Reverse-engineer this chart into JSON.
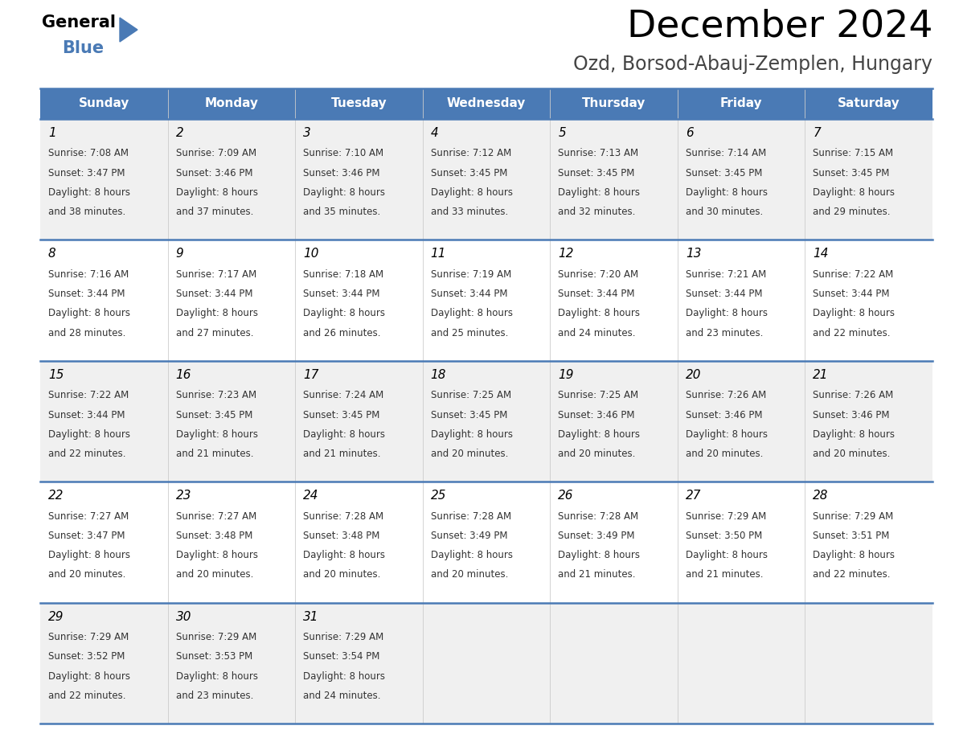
{
  "title": "December 2024",
  "subtitle": "Ozd, Borsod-Abauj-Zemplen, Hungary",
  "header_color": "#4a7ab5",
  "header_text_color": "#ffffff",
  "day_names": [
    "Sunday",
    "Monday",
    "Tuesday",
    "Wednesday",
    "Thursday",
    "Friday",
    "Saturday"
  ],
  "row_bg_colors": [
    "#f0f0f0",
    "#ffffff",
    "#f0f0f0",
    "#ffffff",
    "#f0f0f0"
  ],
  "border_color": "#4a7ab5",
  "text_color": "#333333",
  "days": [
    {
      "day": 1,
      "col": 0,
      "row": 0,
      "sunrise": "7:08 AM",
      "sunset": "3:47 PM",
      "daylight": "8 hours and 38 minutes."
    },
    {
      "day": 2,
      "col": 1,
      "row": 0,
      "sunrise": "7:09 AM",
      "sunset": "3:46 PM",
      "daylight": "8 hours and 37 minutes."
    },
    {
      "day": 3,
      "col": 2,
      "row": 0,
      "sunrise": "7:10 AM",
      "sunset": "3:46 PM",
      "daylight": "8 hours and 35 minutes."
    },
    {
      "day": 4,
      "col": 3,
      "row": 0,
      "sunrise": "7:12 AM",
      "sunset": "3:45 PM",
      "daylight": "8 hours and 33 minutes."
    },
    {
      "day": 5,
      "col": 4,
      "row": 0,
      "sunrise": "7:13 AM",
      "sunset": "3:45 PM",
      "daylight": "8 hours and 32 minutes."
    },
    {
      "day": 6,
      "col": 5,
      "row": 0,
      "sunrise": "7:14 AM",
      "sunset": "3:45 PM",
      "daylight": "8 hours and 30 minutes."
    },
    {
      "day": 7,
      "col": 6,
      "row": 0,
      "sunrise": "7:15 AM",
      "sunset": "3:45 PM",
      "daylight": "8 hours and 29 minutes."
    },
    {
      "day": 8,
      "col": 0,
      "row": 1,
      "sunrise": "7:16 AM",
      "sunset": "3:44 PM",
      "daylight": "8 hours and 28 minutes."
    },
    {
      "day": 9,
      "col": 1,
      "row": 1,
      "sunrise": "7:17 AM",
      "sunset": "3:44 PM",
      "daylight": "8 hours and 27 minutes."
    },
    {
      "day": 10,
      "col": 2,
      "row": 1,
      "sunrise": "7:18 AM",
      "sunset": "3:44 PM",
      "daylight": "8 hours and 26 minutes."
    },
    {
      "day": 11,
      "col": 3,
      "row": 1,
      "sunrise": "7:19 AM",
      "sunset": "3:44 PM",
      "daylight": "8 hours and 25 minutes."
    },
    {
      "day": 12,
      "col": 4,
      "row": 1,
      "sunrise": "7:20 AM",
      "sunset": "3:44 PM",
      "daylight": "8 hours and 24 minutes."
    },
    {
      "day": 13,
      "col": 5,
      "row": 1,
      "sunrise": "7:21 AM",
      "sunset": "3:44 PM",
      "daylight": "8 hours and 23 minutes."
    },
    {
      "day": 14,
      "col": 6,
      "row": 1,
      "sunrise": "7:22 AM",
      "sunset": "3:44 PM",
      "daylight": "8 hours and 22 minutes."
    },
    {
      "day": 15,
      "col": 0,
      "row": 2,
      "sunrise": "7:22 AM",
      "sunset": "3:44 PM",
      "daylight": "8 hours and 22 minutes."
    },
    {
      "day": 16,
      "col": 1,
      "row": 2,
      "sunrise": "7:23 AM",
      "sunset": "3:45 PM",
      "daylight": "8 hours and 21 minutes."
    },
    {
      "day": 17,
      "col": 2,
      "row": 2,
      "sunrise": "7:24 AM",
      "sunset": "3:45 PM",
      "daylight": "8 hours and 21 minutes."
    },
    {
      "day": 18,
      "col": 3,
      "row": 2,
      "sunrise": "7:25 AM",
      "sunset": "3:45 PM",
      "daylight": "8 hours and 20 minutes."
    },
    {
      "day": 19,
      "col": 4,
      "row": 2,
      "sunrise": "7:25 AM",
      "sunset": "3:46 PM",
      "daylight": "8 hours and 20 minutes."
    },
    {
      "day": 20,
      "col": 5,
      "row": 2,
      "sunrise": "7:26 AM",
      "sunset": "3:46 PM",
      "daylight": "8 hours and 20 minutes."
    },
    {
      "day": 21,
      "col": 6,
      "row": 2,
      "sunrise": "7:26 AM",
      "sunset": "3:46 PM",
      "daylight": "8 hours and 20 minutes."
    },
    {
      "day": 22,
      "col": 0,
      "row": 3,
      "sunrise": "7:27 AM",
      "sunset": "3:47 PM",
      "daylight": "8 hours and 20 minutes."
    },
    {
      "day": 23,
      "col": 1,
      "row": 3,
      "sunrise": "7:27 AM",
      "sunset": "3:48 PM",
      "daylight": "8 hours and 20 minutes."
    },
    {
      "day": 24,
      "col": 2,
      "row": 3,
      "sunrise": "7:28 AM",
      "sunset": "3:48 PM",
      "daylight": "8 hours and 20 minutes."
    },
    {
      "day": 25,
      "col": 3,
      "row": 3,
      "sunrise": "7:28 AM",
      "sunset": "3:49 PM",
      "daylight": "8 hours and 20 minutes."
    },
    {
      "day": 26,
      "col": 4,
      "row": 3,
      "sunrise": "7:28 AM",
      "sunset": "3:49 PM",
      "daylight": "8 hours and 21 minutes."
    },
    {
      "day": 27,
      "col": 5,
      "row": 3,
      "sunrise": "7:29 AM",
      "sunset": "3:50 PM",
      "daylight": "8 hours and 21 minutes."
    },
    {
      "day": 28,
      "col": 6,
      "row": 3,
      "sunrise": "7:29 AM",
      "sunset": "3:51 PM",
      "daylight": "8 hours and 22 minutes."
    },
    {
      "day": 29,
      "col": 0,
      "row": 4,
      "sunrise": "7:29 AM",
      "sunset": "3:52 PM",
      "daylight": "8 hours and 22 minutes."
    },
    {
      "day": 30,
      "col": 1,
      "row": 4,
      "sunrise": "7:29 AM",
      "sunset": "3:53 PM",
      "daylight": "8 hours and 23 minutes."
    },
    {
      "day": 31,
      "col": 2,
      "row": 4,
      "sunrise": "7:29 AM",
      "sunset": "3:54 PM",
      "daylight": "8 hours and 24 minutes."
    }
  ],
  "num_rows": 5,
  "figwidth": 11.88,
  "figheight": 9.18,
  "dpi": 100
}
